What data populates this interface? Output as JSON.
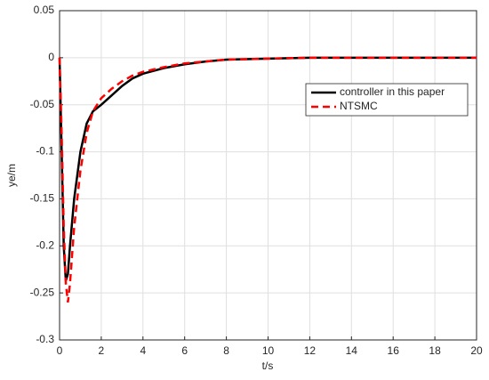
{
  "chart_data": {
    "type": "line",
    "x_label": "t/s",
    "y_label": "ye/m",
    "x": [
      0,
      0.1,
      0.2,
      0.3,
      0.4,
      0.5,
      0.7,
      1.0,
      1.3,
      1.6,
      2,
      2.5,
      3,
      3.5,
      4,
      5,
      6,
      7,
      8,
      10,
      12,
      14,
      16,
      18,
      20
    ],
    "series": [
      {
        "name": "controller in this paper",
        "color": "#000000",
        "dash": "solid",
        "values": [
          0,
          -0.1,
          -0.2,
          -0.237,
          -0.23,
          -0.2,
          -0.15,
          -0.1,
          -0.07,
          -0.057,
          -0.05,
          -0.04,
          -0.03,
          -0.022,
          -0.017,
          -0.011,
          -0.007,
          -0.004,
          -0.002,
          -0.001,
          0,
          0,
          0,
          0,
          0
        ]
      },
      {
        "name": "NTSMC",
        "color": "#ff0000",
        "dash": "dashed",
        "values": [
          0,
          -0.08,
          -0.18,
          -0.24,
          -0.26,
          -0.24,
          -0.18,
          -0.12,
          -0.08,
          -0.057,
          -0.043,
          -0.033,
          -0.025,
          -0.019,
          -0.015,
          -0.01,
          -0.006,
          -0.004,
          -0.002,
          -0.001,
          0,
          0,
          0,
          0,
          0
        ]
      }
    ],
    "xlim": [
      0,
      20
    ],
    "xticks": [
      0,
      2,
      4,
      6,
      8,
      10,
      12,
      14,
      16,
      18,
      20
    ],
    "ylim": [
      -0.3,
      0.05
    ],
    "yticks": [
      -0.3,
      -0.25,
      -0.2,
      -0.15,
      -0.1,
      -0.05,
      0,
      0.05
    ],
    "grid": true,
    "legend": "upper right"
  }
}
